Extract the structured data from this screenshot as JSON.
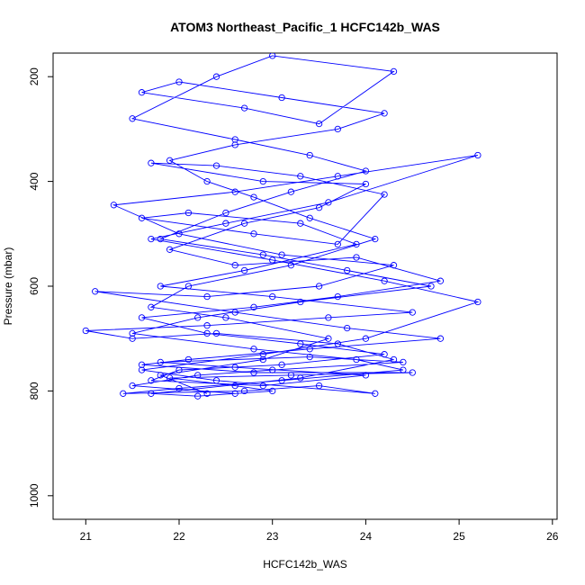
{
  "chart_data": {
    "type": "line",
    "title": "ATOM3 Northeast_Pacific_1 HCFC142b_WAS",
    "xlabel": "HCFC142b_WAS",
    "ylabel": "Pressure (mbar)",
    "xlim": [
      20.65,
      26.05
    ],
    "ylim": [
      1045,
      155
    ],
    "y_reversed": true,
    "x_ticks": [
      21,
      22,
      23,
      24,
      25,
      26
    ],
    "y_ticks": [
      200,
      400,
      600,
      800,
      1000
    ],
    "grid": false,
    "legend": "none",
    "marker": "open-circle",
    "colors": {
      "series": "#0000ff",
      "axis": "#000000"
    },
    "series": [
      {
        "values": [
          [
            22.3,
            805
          ],
          [
            21.8,
            770
          ],
          [
            22.9,
            740
          ],
          [
            23.6,
            700
          ],
          [
            22.5,
            660
          ],
          [
            21.7,
            640
          ],
          [
            22.1,
            600
          ],
          [
            23.2,
            560
          ],
          [
            24.1,
            510
          ],
          [
            23.4,
            470
          ],
          [
            22.8,
            430
          ],
          [
            22.3,
            400
          ],
          [
            21.9,
            360
          ],
          [
            22.6,
            330
          ],
          [
            23.7,
            300
          ],
          [
            24.2,
            270
          ],
          [
            23.1,
            240
          ],
          [
            22.0,
            210
          ],
          [
            21.6,
            230
          ],
          [
            22.7,
            260
          ],
          [
            23.5,
            290
          ],
          [
            24.3,
            190
          ],
          [
            23.0,
            160
          ],
          [
            22.4,
            200
          ],
          [
            21.5,
            280
          ],
          [
            22.6,
            320
          ],
          [
            23.4,
            350
          ],
          [
            24.0,
            380
          ],
          [
            23.2,
            420
          ],
          [
            22.5,
            460
          ],
          [
            21.8,
            510
          ],
          [
            22.9,
            540
          ],
          [
            23.8,
            570
          ],
          [
            24.7,
            600
          ],
          [
            23.3,
            630
          ],
          [
            22.2,
            660
          ],
          [
            21.5,
            690
          ],
          [
            22.8,
            720
          ],
          [
            23.9,
            740
          ],
          [
            24.4,
            760
          ],
          [
            23.1,
            780
          ],
          [
            22.0,
            795
          ],
          [
            21.4,
            805
          ],
          [
            22.7,
            800
          ],
          [
            23.5,
            790
          ],
          [
            24.1,
            805
          ],
          [
            22.4,
            780
          ],
          [
            21.6,
            760
          ],
          [
            22.9,
            730
          ],
          [
            24.0,
            700
          ],
          [
            25.2,
            630
          ],
          [
            24.2,
            590
          ],
          [
            23.0,
            550
          ],
          [
            21.7,
            510
          ],
          [
            22.5,
            480
          ],
          [
            23.6,
            440
          ],
          [
            25.2,
            350
          ],
          [
            23.7,
            390
          ],
          [
            22.6,
            420
          ],
          [
            21.3,
            445
          ],
          [
            22.0,
            500
          ],
          [
            23.1,
            540
          ],
          [
            24.3,
            560
          ],
          [
            23.5,
            600
          ],
          [
            22.3,
            620
          ],
          [
            21.1,
            610
          ],
          [
            22.6,
            650
          ],
          [
            23.8,
            680
          ],
          [
            24.8,
            700
          ],
          [
            23.4,
            720
          ],
          [
            22.1,
            740
          ],
          [
            21.6,
            750
          ],
          [
            22.8,
            765
          ],
          [
            24.5,
            765
          ],
          [
            23.2,
            770
          ],
          [
            21.9,
            775
          ],
          [
            22.6,
            790
          ],
          [
            23.0,
            800
          ],
          [
            22.2,
            810
          ],
          [
            21.7,
            805
          ],
          [
            23.3,
            775
          ],
          [
            24.3,
            740
          ],
          [
            23.7,
            710
          ],
          [
            22.4,
            690
          ],
          [
            21.5,
            700
          ],
          [
            21.0,
            685
          ],
          [
            22.3,
            675
          ],
          [
            23.6,
            660
          ],
          [
            24.5,
            650
          ],
          [
            23.0,
            620
          ],
          [
            21.8,
            600
          ],
          [
            22.7,
            570
          ],
          [
            23.9,
            520
          ],
          [
            23.3,
            480
          ],
          [
            22.1,
            460
          ],
          [
            21.6,
            470
          ],
          [
            22.8,
            500
          ],
          [
            23.7,
            520
          ],
          [
            24.2,
            425
          ],
          [
            23.3,
            390
          ],
          [
            22.4,
            370
          ],
          [
            21.7,
            365
          ],
          [
            22.9,
            400
          ],
          [
            24.0,
            405
          ],
          [
            23.5,
            450
          ],
          [
            22.7,
            480
          ],
          [
            21.9,
            530
          ],
          [
            22.6,
            560
          ],
          [
            23.9,
            545
          ],
          [
            24.8,
            590
          ],
          [
            23.7,
            620
          ],
          [
            22.8,
            640
          ],
          [
            21.6,
            660
          ],
          [
            22.3,
            690
          ],
          [
            23.3,
            710
          ],
          [
            24.2,
            730
          ],
          [
            23.1,
            750
          ],
          [
            22.0,
            760
          ],
          [
            21.7,
            780
          ],
          [
            22.9,
            790
          ],
          [
            24.0,
            770
          ],
          [
            22.6,
            755
          ],
          [
            21.8,
            745
          ],
          [
            23.4,
            735
          ],
          [
            24.4,
            745
          ],
          [
            23.0,
            760
          ],
          [
            22.2,
            770
          ],
          [
            21.5,
            790
          ],
          [
            22.6,
            805
          ]
        ]
      }
    ]
  }
}
